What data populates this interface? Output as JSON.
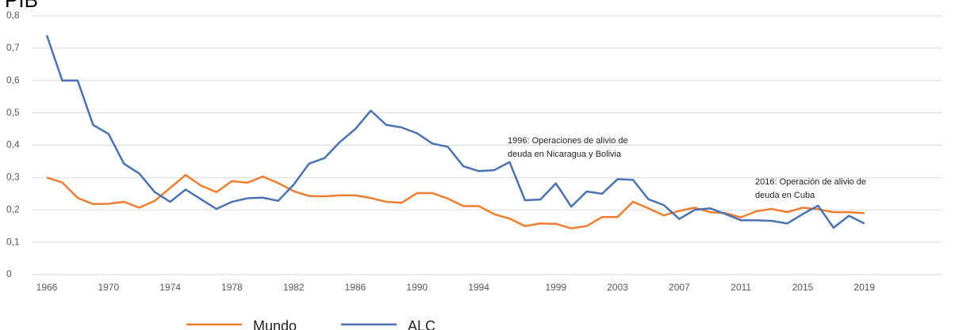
{
  "chart_data": {
    "type": "line",
    "title": "PIB",
    "x": [
      1966,
      1967,
      1968,
      1969,
      1970,
      1971,
      1972,
      1973,
      1974,
      1975,
      1976,
      1977,
      1978,
      1979,
      1980,
      1981,
      1982,
      1983,
      1984,
      1985,
      1986,
      1987,
      1988,
      1989,
      1990,
      1991,
      1992,
      1993,
      1994,
      1995,
      1996,
      1997,
      1998,
      1999,
      2000,
      2001,
      2002,
      2003,
      2004,
      2005,
      2006,
      2007,
      2008,
      2009,
      2010,
      2011,
      2012,
      2013,
      2014,
      2015,
      2016,
      2017,
      2018,
      2019
    ],
    "xlim": [
      1966,
      2024
    ],
    "xticks": [
      1966,
      1970,
      1974,
      1978,
      1982,
      1986,
      1990,
      1994,
      1999,
      2003,
      2007,
      2011,
      2015,
      2019
    ],
    "ylim": [
      0,
      0.8
    ],
    "yticks": [
      {
        "value": 0,
        "label": "0"
      },
      {
        "value": 0.1,
        "label": "0,1"
      },
      {
        "value": 0.2,
        "label": "0,2"
      },
      {
        "value": 0.3,
        "label": "0,3"
      },
      {
        "value": 0.4,
        "label": "0,4"
      },
      {
        "value": 0.5,
        "label": "0,5"
      },
      {
        "value": 0.6,
        "label": "0,6"
      },
      {
        "value": 0.7,
        "label": "0,7"
      },
      {
        "value": 0.8,
        "label": "0,8"
      }
    ],
    "grid": true,
    "legend": "bottom",
    "series": [
      {
        "name": "Mundo",
        "color": "#ed7d31",
        "values": [
          0.3,
          0.285,
          0.237,
          0.218,
          0.219,
          0.225,
          0.207,
          0.228,
          0.268,
          0.308,
          0.275,
          0.255,
          0.289,
          0.284,
          0.303,
          0.283,
          0.258,
          0.243,
          0.242,
          0.245,
          0.245,
          0.237,
          0.225,
          0.222,
          0.252,
          0.252,
          0.235,
          0.212,
          0.212,
          0.187,
          0.173,
          0.15,
          0.158,
          0.157,
          0.143,
          0.15,
          0.178,
          0.178,
          0.225,
          0.205,
          0.183,
          0.197,
          0.207,
          0.193,
          0.19,
          0.177,
          0.196,
          0.203,
          0.193,
          0.207,
          0.202,
          0.193,
          0.193,
          0.19
        ]
      },
      {
        "name": "ALC",
        "color": "#4a72b0",
        "values": [
          0.74,
          0.6,
          0.6,
          0.463,
          0.435,
          0.343,
          0.312,
          0.255,
          0.225,
          0.263,
          0.233,
          0.203,
          0.225,
          0.236,
          0.238,
          0.228,
          0.278,
          0.343,
          0.36,
          0.41,
          0.45,
          0.507,
          0.463,
          0.455,
          0.437,
          0.405,
          0.395,
          0.335,
          0.32,
          0.323,
          0.348,
          0.23,
          0.232,
          0.282,
          0.21,
          0.257,
          0.25,
          0.295,
          0.293,
          0.233,
          0.215,
          0.172,
          0.2,
          0.205,
          0.187,
          0.168,
          0.168,
          0.166,
          0.158,
          0.187,
          0.213,
          0.145,
          0.182,
          0.158
        ]
      }
    ],
    "annotations": [
      {
        "lines": [
          "1996: Operaciones de alivio de",
          "deuda en Nicaragua y Bolivia"
        ]
      },
      {
        "lines": [
          "2016: Operación de alivio de",
          "deuda en Cuba"
        ]
      }
    ]
  }
}
